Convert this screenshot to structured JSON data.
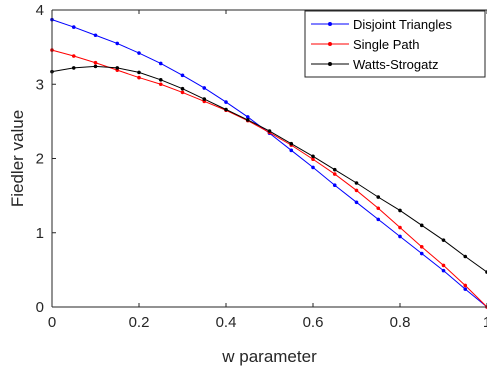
{
  "chart_data": {
    "type": "line",
    "title": "",
    "xlabel": "w parameter",
    "ylabel": "Fiedler value",
    "xlim": [
      0,
      1
    ],
    "ylim": [
      0,
      4
    ],
    "xticks": [
      {
        "value": 0,
        "label": "0"
      },
      {
        "value": 0.2,
        "label": "0.2"
      },
      {
        "value": 0.4,
        "label": "0.4"
      },
      {
        "value": 0.6,
        "label": "0.6"
      },
      {
        "value": 0.8,
        "label": "0.8"
      },
      {
        "value": 1,
        "label": "1"
      }
    ],
    "yticks": [
      {
        "value": 0,
        "label": "0"
      },
      {
        "value": 1,
        "label": "1"
      },
      {
        "value": 2,
        "label": "2"
      },
      {
        "value": 3,
        "label": "3"
      },
      {
        "value": 4,
        "label": "4"
      }
    ],
    "grid": false,
    "legend_position": "top-right",
    "x": [
      0,
      0.05,
      0.1,
      0.15,
      0.2,
      0.25,
      0.3,
      0.35,
      0.4,
      0.45,
      0.5,
      0.55,
      0.6,
      0.65,
      0.7,
      0.75,
      0.8,
      0.85,
      0.9,
      0.95,
      1.0
    ],
    "series": [
      {
        "name": "Disjoint Triangles",
        "color": "#0000ff",
        "values": [
          3.87,
          3.77,
          3.66,
          3.55,
          3.42,
          3.28,
          3.12,
          2.95,
          2.76,
          2.56,
          2.34,
          2.11,
          1.88,
          1.64,
          1.41,
          1.18,
          0.95,
          0.72,
          0.49,
          0.24,
          0.0
        ]
      },
      {
        "name": "Single Path",
        "color": "#ff0000",
        "values": [
          3.46,
          3.38,
          3.29,
          3.19,
          3.09,
          3.0,
          2.89,
          2.77,
          2.65,
          2.51,
          2.35,
          2.18,
          1.99,
          1.79,
          1.57,
          1.33,
          1.07,
          0.81,
          0.56,
          0.29,
          0.0
        ]
      },
      {
        "name": "Watts-Strogatz",
        "color": "#000000",
        "values": [
          3.17,
          3.22,
          3.24,
          3.22,
          3.16,
          3.06,
          2.94,
          2.8,
          2.66,
          2.52,
          2.37,
          2.2,
          2.03,
          1.85,
          1.67,
          1.48,
          1.3,
          1.1,
          0.9,
          0.68,
          0.47
        ]
      }
    ]
  }
}
